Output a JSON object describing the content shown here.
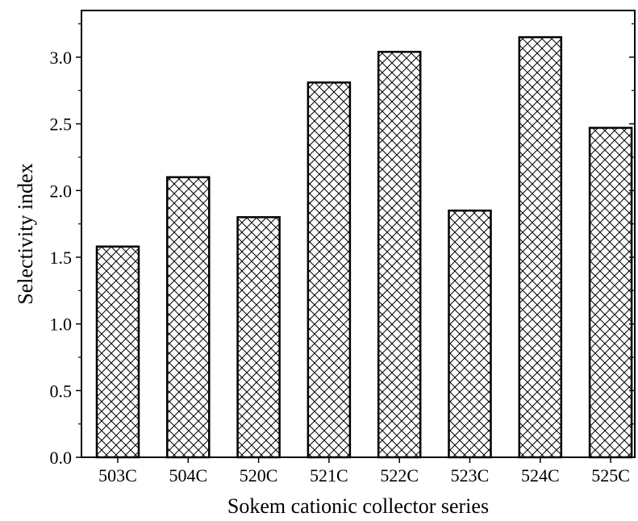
{
  "chart_data": {
    "type": "bar",
    "title": "",
    "xlabel": "Sokem cationic collector series",
    "ylabel": "Selectivity index",
    "categories": [
      "503C",
      "504C",
      "520C",
      "521C",
      "522C",
      "523C",
      "524C",
      "525C"
    ],
    "values": [
      1.58,
      2.1,
      1.8,
      2.81,
      3.04,
      1.85,
      3.15,
      2.47
    ],
    "ylim": [
      0.0,
      3.35
    ],
    "yticks": [
      "0.0",
      "0.5",
      "1.0",
      "1.5",
      "2.0",
      "2.5",
      "3.0"
    ],
    "bar_fill": "crosshatch",
    "bar_color": "#000000",
    "grid": false,
    "legend": "none"
  }
}
